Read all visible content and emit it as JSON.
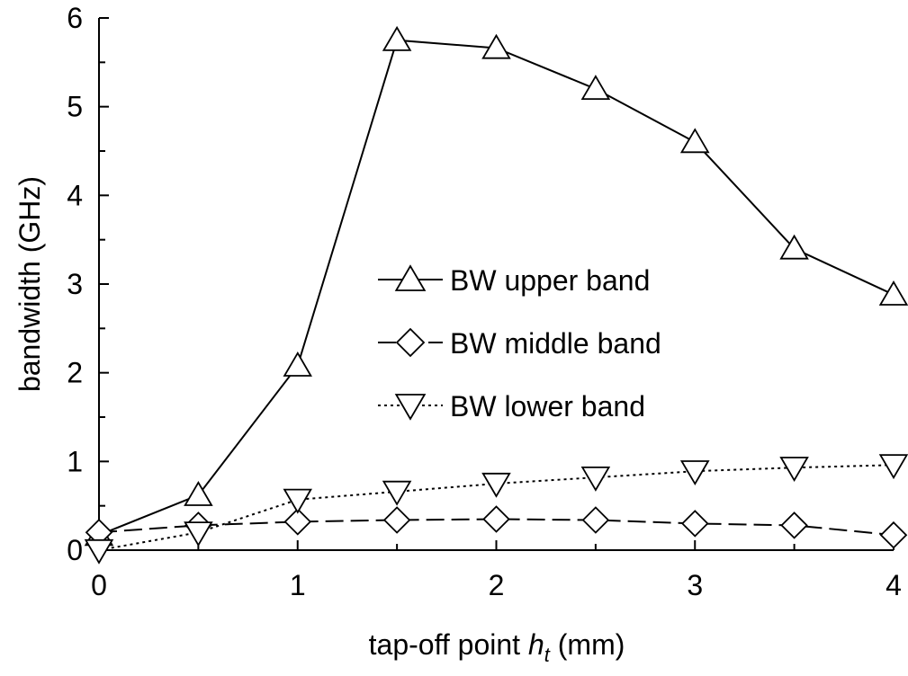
{
  "chart_data": {
    "type": "line",
    "xlabel": {
      "text": "tap-off point",
      "symbol": "h",
      "subscript": "t",
      "unit": "(mm)"
    },
    "ylabel": "bandwidth (GHz)",
    "xlim": [
      0,
      4
    ],
    "ylim": [
      0,
      6
    ],
    "x_ticks": [
      0,
      1,
      2,
      3,
      4
    ],
    "y_ticks": [
      0,
      1,
      2,
      3,
      4,
      5,
      6
    ],
    "x": [
      0,
      0.5,
      1,
      1.5,
      2,
      2.5,
      3,
      3.5,
      4
    ],
    "grid": false,
    "legend_position": "center-right",
    "series": [
      {
        "name": "BW upper band",
        "marker": "triangle-up",
        "line_style": "solid",
        "color": "#000000",
        "values": [
          0.17,
          0.62,
          2.08,
          5.75,
          5.66,
          5.2,
          4.6,
          3.4,
          2.88
        ]
      },
      {
        "name": "BW middle band",
        "marker": "diamond",
        "line_style": "dashed",
        "color": "#000000",
        "values": [
          0.2,
          0.28,
          0.32,
          0.34,
          0.35,
          0.34,
          0.3,
          0.28,
          0.17
        ]
      },
      {
        "name": "BW lower band",
        "marker": "triangle-down",
        "line_style": "dotted",
        "color": "#000000",
        "values": [
          0.0,
          0.2,
          0.57,
          0.66,
          0.75,
          0.82,
          0.89,
          0.93,
          0.96
        ]
      }
    ]
  }
}
